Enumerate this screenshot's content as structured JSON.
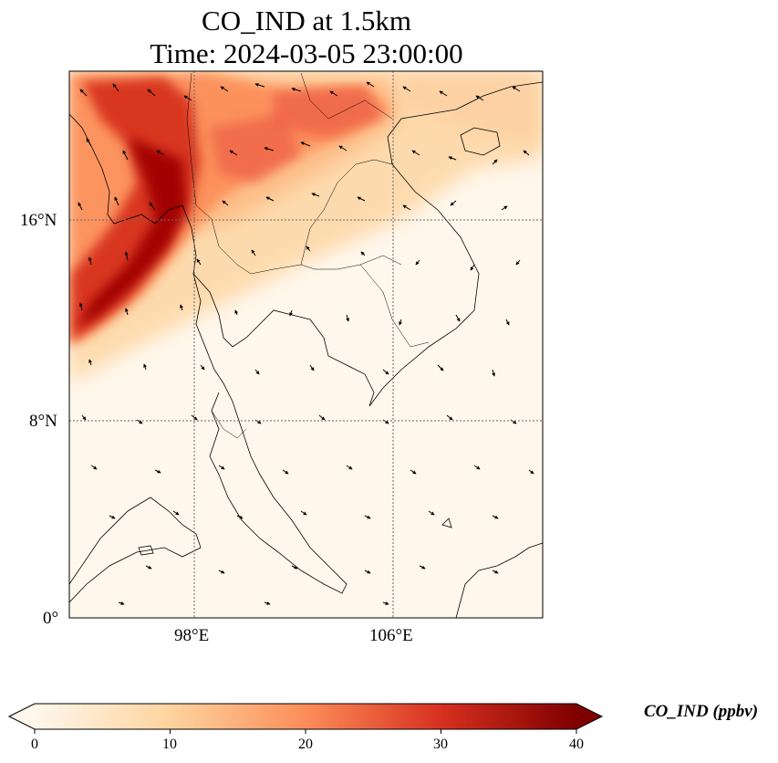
{
  "title_line1": "CO_IND at 1.5km",
  "title_line2": "Time: 2024-03-05 23:00:00",
  "map": {
    "type": "filled-map",
    "variable": "CO_IND",
    "units": "ppbv",
    "lon_range": [
      93,
      112
    ],
    "lat_range": [
      0,
      22
    ],
    "lat_ticks": [
      {
        "value": 16,
        "label": "16°N"
      },
      {
        "value": 8,
        "label": "8°N"
      },
      {
        "value": 0,
        "label": "0°"
      }
    ],
    "lon_ticks": [
      {
        "value": 98,
        "label": "98°E"
      },
      {
        "value": 106,
        "label": "106°E"
      }
    ],
    "gridlines": true,
    "wind_vectors": true,
    "colormap": "OrRd",
    "colors": [
      "#fff7ec",
      "#fdd49e",
      "#fc8d59",
      "#d7301f",
      "#7f0000"
    ]
  },
  "colorbar": {
    "label": "CO_IND (ppbv)",
    "min": 0,
    "max": 40,
    "ticks": [
      "0",
      "10",
      "20",
      "30",
      "40"
    ],
    "extend": "both"
  }
}
